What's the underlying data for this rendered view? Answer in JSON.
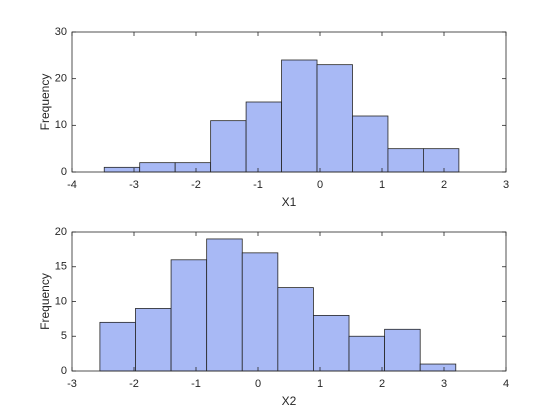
{
  "chart_data": [
    {
      "type": "histogram",
      "xlabel": "X1",
      "ylabel": "Frequency",
      "color": "#a8b9f5",
      "bins": [
        -3.48,
        -2.908,
        -2.336,
        -1.764,
        -1.192,
        -0.62,
        -0.048,
        0.524,
        1.096,
        1.668,
        2.24
      ],
      "values": [
        1,
        2,
        2,
        11,
        15,
        24,
        23,
        12,
        5,
        5
      ],
      "xlim": [
        -4,
        3
      ],
      "xticks": [
        -4,
        -3,
        -2,
        -1,
        0,
        1,
        2,
        3
      ],
      "ylim": [
        0,
        30
      ],
      "yticks": [
        0,
        10,
        20,
        30
      ]
    },
    {
      "type": "histogram",
      "xlabel": "X2",
      "ylabel": "Frequency",
      "color": "#a8b9f5",
      "bins": [
        -2.55,
        -1.976,
        -1.402,
        -0.828,
        -0.254,
        0.32,
        0.894,
        1.468,
        2.042,
        2.616,
        3.19
      ],
      "values": [
        7,
        9,
        16,
        19,
        17,
        12,
        8,
        5,
        6,
        1
      ],
      "xlim": [
        -3,
        4
      ],
      "xticks": [
        -3,
        -2,
        -1,
        0,
        1,
        2,
        3,
        4
      ],
      "ylim": [
        0,
        20
      ],
      "yticks": [
        0,
        5,
        10,
        15,
        20
      ]
    }
  ]
}
